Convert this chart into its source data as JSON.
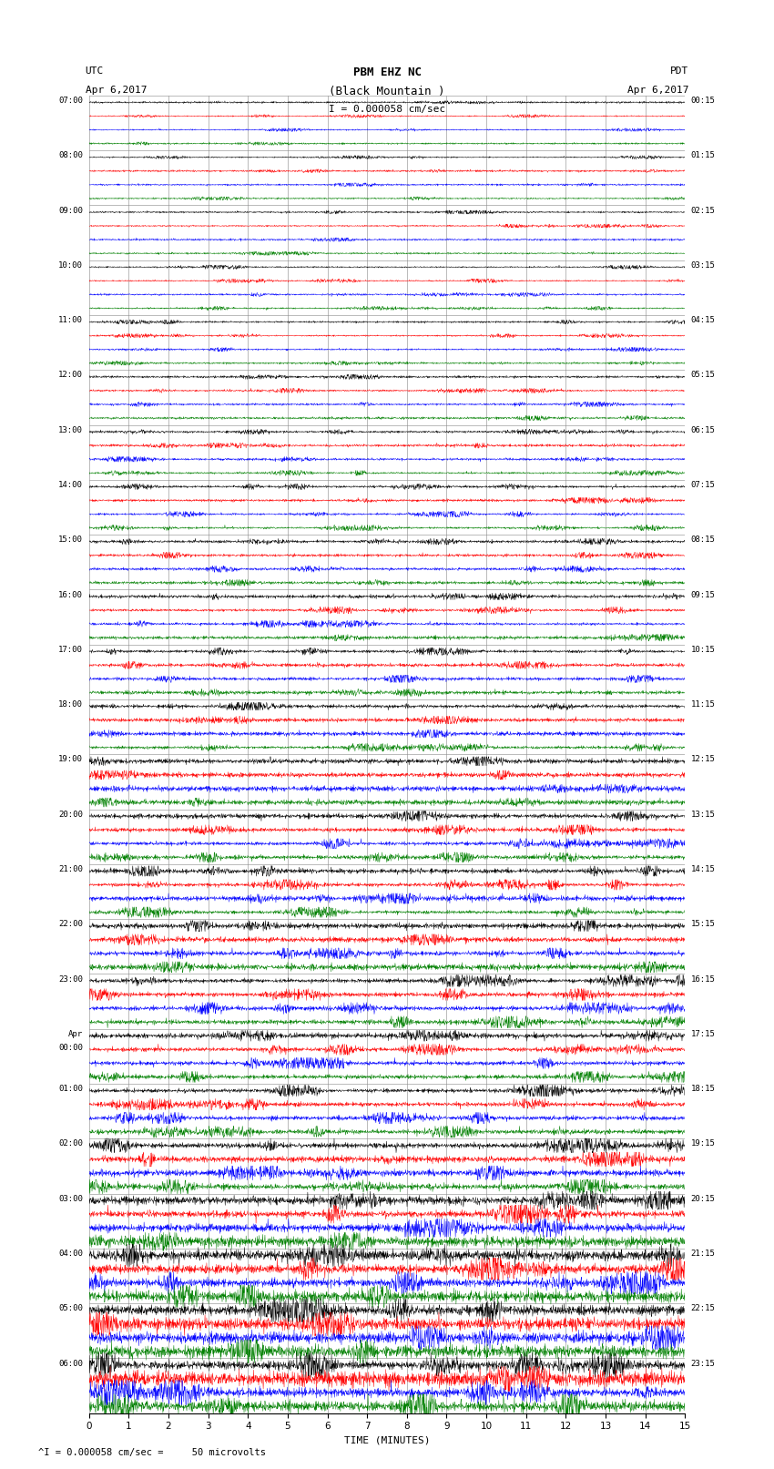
{
  "title_line1": "PBM EHZ NC",
  "title_line2": "(Black Mountain )",
  "scale_label": "I = 0.000058 cm/sec",
  "left_label_top": "UTC",
  "left_label_date": "Apr 6,2017",
  "right_label_top": "PDT",
  "right_label_date": "Apr 6,2017",
  "bottom_label": "TIME (MINUTES)",
  "bottom_note": "^I = 0.000058 cm/sec =     50 microvolts",
  "utc_times": [
    "07:00",
    "08:00",
    "09:00",
    "10:00",
    "11:00",
    "12:00",
    "13:00",
    "14:00",
    "15:00",
    "16:00",
    "17:00",
    "18:00",
    "19:00",
    "20:00",
    "21:00",
    "22:00",
    "23:00",
    "Apr\n00:00",
    "01:00",
    "02:00",
    "03:00",
    "04:00",
    "05:00",
    "06:00"
  ],
  "pdt_times": [
    "00:15",
    "01:15",
    "02:15",
    "03:15",
    "04:15",
    "05:15",
    "06:15",
    "07:15",
    "08:15",
    "09:15",
    "10:15",
    "11:15",
    "12:15",
    "13:15",
    "14:15",
    "15:15",
    "16:15",
    "17:15",
    "18:15",
    "19:15",
    "20:15",
    "21:15",
    "22:15",
    "23:15"
  ],
  "colors": [
    "black",
    "red",
    "blue",
    "green"
  ],
  "bg_color": "#ffffff",
  "line_width": 0.35,
  "n_rows": 24,
  "traces_per_row": 4,
  "n_points": 1800,
  "xlim": [
    0,
    15
  ],
  "xticks": [
    0,
    1,
    2,
    3,
    4,
    5,
    6,
    7,
    8,
    9,
    10,
    11,
    12,
    13,
    14,
    15
  ],
  "amp_profile": [
    0.12,
    0.13,
    0.14,
    0.15,
    0.16,
    0.18,
    0.2,
    0.22,
    0.24,
    0.26,
    0.28,
    0.3,
    0.35,
    0.38,
    0.4,
    0.42,
    0.45,
    0.42,
    0.44,
    0.55,
    0.7,
    0.85,
    0.9,
    0.95
  ]
}
